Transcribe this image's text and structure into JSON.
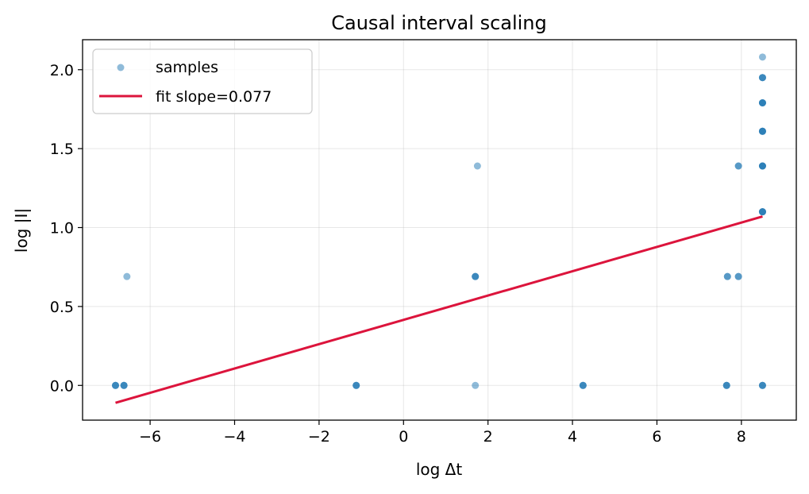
{
  "chart_data": {
    "type": "scatter",
    "title": "Causal interval scaling",
    "xlabel": "log Δt",
    "ylabel": "log |I|",
    "xlim": [
      -7.6,
      9.3
    ],
    "ylim": [
      -0.22,
      2.19
    ],
    "xticks": [
      -6,
      -4,
      -2,
      0,
      2,
      4,
      6,
      8
    ],
    "xtick_labels": [
      "−6",
      "−4",
      "−2",
      "0",
      "2",
      "4",
      "6",
      "8"
    ],
    "yticks": [
      0.0,
      0.5,
      1.0,
      1.5,
      2.0
    ],
    "ytick_labels": [
      "0.0",
      "0.5",
      "1.0",
      "1.5",
      "2.0"
    ],
    "grid": true,
    "legend_position": "upper-left",
    "series": [
      {
        "name": "samples",
        "kind": "scatter",
        "color": "#1f77b4",
        "points": [
          {
            "x": -6.82,
            "y": 0.0,
            "count": 3
          },
          {
            "x": -6.62,
            "y": 0.0,
            "count": 3
          },
          {
            "x": -6.55,
            "y": 0.69,
            "count": 1
          },
          {
            "x": -1.12,
            "y": 0.0,
            "count": 3
          },
          {
            "x": 1.7,
            "y": 0.0,
            "count": 1
          },
          {
            "x": 1.7,
            "y": 0.69,
            "count": 3
          },
          {
            "x": 1.75,
            "y": 1.39,
            "count": 1
          },
          {
            "x": 4.25,
            "y": 0.0,
            "count": 3
          },
          {
            "x": 7.65,
            "y": 0.0,
            "count": 3
          },
          {
            "x": 7.67,
            "y": 0.69,
            "count": 2
          },
          {
            "x": 7.93,
            "y": 0.69,
            "count": 2
          },
          {
            "x": 7.93,
            "y": 1.39,
            "count": 2
          },
          {
            "x": 8.5,
            "y": 0.0,
            "count": 3
          },
          {
            "x": 8.5,
            "y": 1.1,
            "count": 4
          },
          {
            "x": 8.5,
            "y": 1.39,
            "count": 4
          },
          {
            "x": 8.5,
            "y": 1.61,
            "count": 4
          },
          {
            "x": 8.5,
            "y": 1.79,
            "count": 4
          },
          {
            "x": 8.5,
            "y": 1.95,
            "count": 3
          },
          {
            "x": 8.5,
            "y": 2.08,
            "count": 1
          }
        ]
      },
      {
        "name": "fit slope=0.077",
        "kind": "line",
        "color": "#dc143c",
        "slope": 0.077,
        "points": [
          {
            "x": -6.82,
            "y": -0.11
          },
          {
            "x": 8.5,
            "y": 1.07
          }
        ]
      }
    ]
  }
}
